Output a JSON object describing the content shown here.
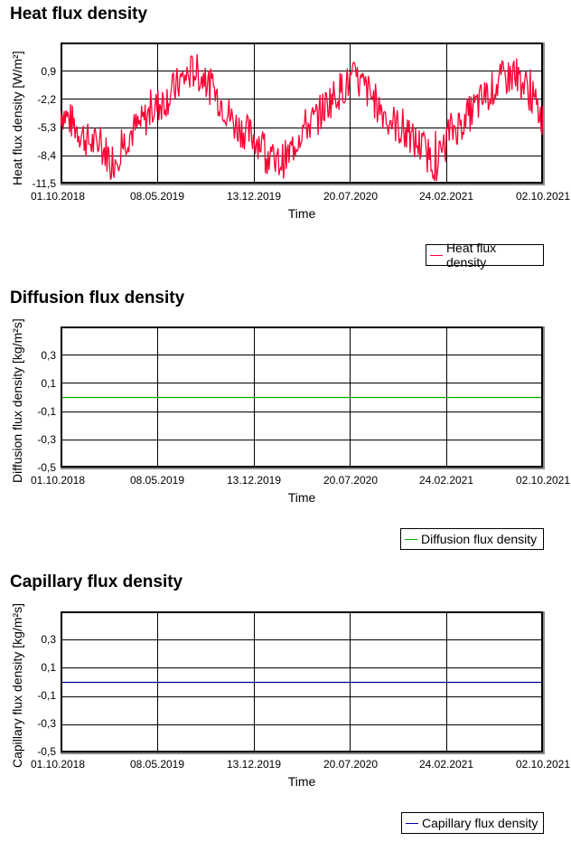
{
  "colors": {
    "heat": "#ff0033",
    "diffusion": "#00b000",
    "capillary": "#0000a0",
    "grid": "#000000",
    "frame_shadow": "#8a8a8a"
  },
  "chart_data": [
    {
      "type": "line",
      "title": "Heat flux density",
      "xlabel": "Time",
      "ylabel": "Heat flux density [W/m²]",
      "x_tick_labels": [
        "01.10.2018",
        "08.05.2019",
        "13.12.2019",
        "20.07.2020",
        "24.02.2021",
        "02.10.2021"
      ],
      "y_tick_labels": [
        "0,9",
        "-2,2",
        "-5,3",
        "-8,4",
        "-11,5"
      ],
      "y_ticks": [
        0.9,
        -2.2,
        -5.3,
        -8.4,
        -11.5
      ],
      "ylim": [
        -11.5,
        4.0
      ],
      "xlim": [
        "01.10.2018",
        "02.10.2021"
      ],
      "grid": true,
      "legend_position": "bottom-right",
      "series": [
        {
          "name": "Heat flux density",
          "color": "#ff0033",
          "note": "approximate daily values sampled at ~monthly resolution, seasonal oscillation",
          "x": [
            "2018-10",
            "2018-11",
            "2018-12",
            "2019-01",
            "2019-02",
            "2019-03",
            "2019-04",
            "2019-05",
            "2019-06",
            "2019-07",
            "2019-08",
            "2019-09",
            "2019-10",
            "2019-11",
            "2019-12",
            "2020-01",
            "2020-02",
            "2020-03",
            "2020-04",
            "2020-05",
            "2020-06",
            "2020-07",
            "2020-08",
            "2020-09",
            "2020-10",
            "2020-11",
            "2020-12",
            "2021-01",
            "2021-02",
            "2021-03",
            "2021-04",
            "2021-05",
            "2021-06",
            "2021-07",
            "2021-08",
            "2021-09",
            "2021-10"
          ],
          "values": [
            -3.5,
            -5.0,
            -6.8,
            -7.5,
            -9.0,
            -6.2,
            -5.0,
            -3.2,
            -2.0,
            -0.2,
            1.0,
            -0.5,
            -2.5,
            -5.0,
            -6.0,
            -7.0,
            -9.5,
            -8.5,
            -5.5,
            -4.5,
            -2.5,
            -1.0,
            0.0,
            -1.5,
            -3.5,
            -5.0,
            -6.5,
            -7.5,
            -9.5,
            -5.8,
            -4.8,
            -3.0,
            -1.5,
            0.0,
            0.5,
            -1.5,
            -4.5
          ]
        }
      ]
    },
    {
      "type": "line",
      "title": "Diffusion flux density",
      "xlabel": "Time",
      "ylabel": "Diffusion flux density [kg/m²s]",
      "x_tick_labels": [
        "01.10.2018",
        "08.05.2019",
        "13.12.2019",
        "20.07.2020",
        "24.02.2021",
        "02.10.2021"
      ],
      "y_tick_labels": [
        "0,3",
        "0,1",
        "-0,1",
        "-0,3",
        "-0,5"
      ],
      "y_ticks": [
        0.3,
        0.1,
        -0.1,
        -0.3,
        -0.5
      ],
      "ylim": [
        -0.5,
        0.5
      ],
      "grid": true,
      "legend_position": "bottom-right",
      "series": [
        {
          "name": "Diffusion flux density",
          "color": "#00b000",
          "x": [
            "01.10.2018",
            "02.10.2021"
          ],
          "values": [
            0.0,
            0.0
          ]
        }
      ]
    },
    {
      "type": "line",
      "title": "Capillary flux density",
      "xlabel": "Time",
      "ylabel": "Capillary flux density [kg/m²s]",
      "x_tick_labels": [
        "01.10.2018",
        "08.05.2019",
        "13.12.2019",
        "20.07.2020",
        "24.02.2021",
        "02.10.2021"
      ],
      "y_tick_labels": [
        "0,3",
        "0,1",
        "-0,1",
        "-0,3",
        "-0,5"
      ],
      "y_ticks": [
        0.3,
        0.1,
        -0.1,
        -0.3,
        -0.5
      ],
      "ylim": [
        -0.5,
        0.5
      ],
      "grid": true,
      "legend_position": "bottom-right",
      "series": [
        {
          "name": "Capillary flux density",
          "color": "#0000a0",
          "x": [
            "01.10.2018",
            "02.10.2021"
          ],
          "values": [
            0.0,
            0.0
          ]
        }
      ]
    }
  ]
}
